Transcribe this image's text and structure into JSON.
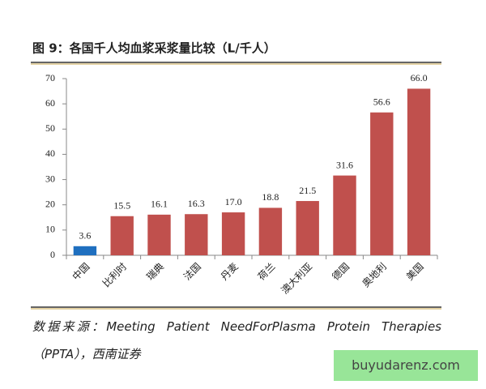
{
  "chart_data": {
    "type": "bar",
    "title": "图 9：各国千人均血浆采浆量比较（L/千人）",
    "categories": [
      "中国",
      "比利时",
      "瑞典",
      "法国",
      "丹麦",
      "荷兰",
      "澳大利亚",
      "德国",
      "奥地利",
      "美国"
    ],
    "values": [
      3.6,
      15.5,
      16.1,
      16.3,
      17.0,
      18.8,
      21.5,
      31.6,
      56.6,
      66.0
    ],
    "value_labels": [
      "3.6",
      "15.5",
      "16.1",
      "16.3",
      "17.0",
      "18.8",
      "21.5",
      "31.6",
      "56.6",
      "66.0"
    ],
    "colors": [
      "#1f6fbf",
      "#c0504d",
      "#c0504d",
      "#c0504d",
      "#c0504d",
      "#c0504d",
      "#c0504d",
      "#c0504d",
      "#c0504d",
      "#c0504d"
    ],
    "ylim": [
      0,
      70
    ],
    "yticks": [
      0,
      10,
      20,
      30,
      40,
      50,
      60,
      70
    ],
    "grid": false,
    "source": "数据来源：Meeting Patient NeedForPlasma Protein Therapies（PPTA），西南证券",
    "watermark": "buyudarenz.com"
  }
}
